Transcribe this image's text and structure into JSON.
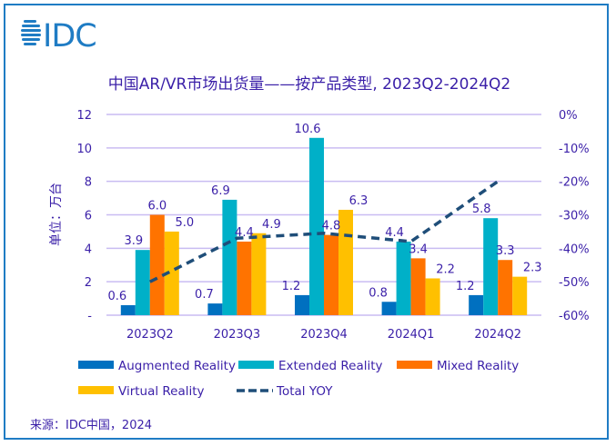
{
  "logo_text": "IDC",
  "source": "来源：IDC中国，2024",
  "chart_data": {
    "type": "bar",
    "title": "中国AR/VR市场出货量——按产品类型, 2023Q2-2024Q2",
    "ylabel": "单位：万台",
    "ylabel_right": "",
    "categories": [
      "2023Q2",
      "2023Q3",
      "2023Q4",
      "2024Q1",
      "2024Q2"
    ],
    "ylim": [
      0,
      12
    ],
    "y_ticks": [
      "-",
      "2",
      "4",
      "6",
      "8",
      "10",
      "12"
    ],
    "y2lim": [
      -60,
      0
    ],
    "y2_ticks": [
      "-60%",
      "-50%",
      "-40%",
      "-30%",
      "-20%",
      "-10%",
      "0%"
    ],
    "grid": true,
    "legend_position": "bottom",
    "series": [
      {
        "name": "Augmented Reality",
        "kind": "bar",
        "color": "#0070C0",
        "values": [
          0.6,
          0.7,
          1.2,
          0.8,
          1.2
        ],
        "labels": [
          "0.6",
          "0.7",
          "1.2",
          "0.8",
          "1.2"
        ]
      },
      {
        "name": "Extended Reality",
        "kind": "bar",
        "color": "#00B0C8",
        "values": [
          3.9,
          6.9,
          10.6,
          4.4,
          5.8
        ],
        "labels": [
          "3.9",
          "6.9",
          "10.6",
          "4.4",
          "5.8"
        ]
      },
      {
        "name": "Mixed Reality",
        "kind": "bar",
        "color": "#FF7300",
        "values": [
          6.0,
          4.4,
          4.8,
          3.4,
          3.3
        ],
        "labels": [
          "6.0",
          "4.4",
          "4.8",
          "3.4",
          "3.3"
        ]
      },
      {
        "name": "Virtual Reality",
        "kind": "bar",
        "color": "#FFC000",
        "values": [
          5.0,
          4.9,
          6.3,
          2.2,
          2.3
        ],
        "labels": [
          "5.0",
          "4.9",
          "6.3",
          "2.2",
          "2.3"
        ]
      },
      {
        "name": "Total YOY",
        "kind": "line",
        "axis": "right",
        "color": "#1F4E79",
        "values": [
          -50,
          -37,
          -35.5,
          -38,
          -20
        ]
      }
    ]
  }
}
